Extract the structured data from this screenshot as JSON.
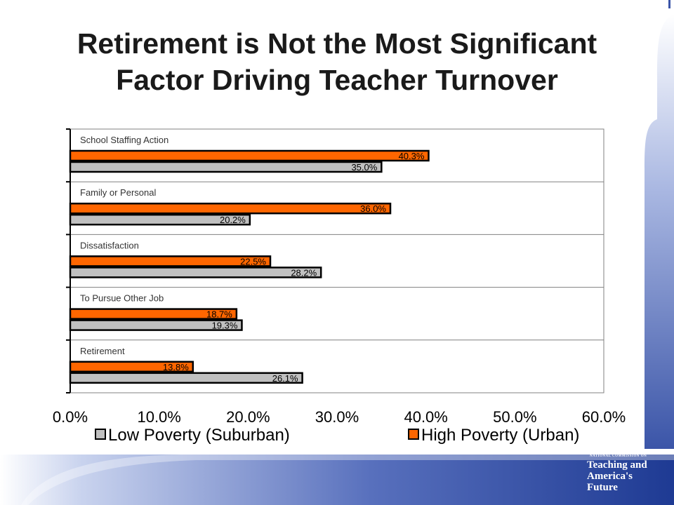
{
  "title_line1": "Retirement is Not the Most Significant",
  "title_line2": "Factor Driving Teacher Turnover",
  "logo": {
    "small_text": "NATIONAL COMMISSION ON",
    "line1": "Teaching and",
    "line2": "America's",
    "line3": "Future"
  },
  "colors": {
    "high": "#ff6600",
    "low": "#c0c0c0",
    "accent_blue": "#3b55a8"
  },
  "chart_data": {
    "type": "bar",
    "orientation": "horizontal",
    "categories": [
      "School Staffing Action",
      "Family or Personal",
      "Dissatisfaction",
      "To Pursue Other Job",
      "Retirement"
    ],
    "series": [
      {
        "name": "High Poverty (Urban)",
        "key": "high",
        "values": [
          40.3,
          36.0,
          22.5,
          18.7,
          13.8
        ],
        "labels": [
          "40.3%",
          "36.0%",
          "22.5%",
          "18.7%",
          "13.8%"
        ]
      },
      {
        "name": "Low Poverty (Suburban)",
        "key": "low",
        "values": [
          35.0,
          20.2,
          28.2,
          19.3,
          26.1
        ],
        "labels": [
          "35.0%",
          "20.2%",
          "28.2%",
          "19.3%",
          "26.1%"
        ]
      }
    ],
    "xlim": [
      0,
      60
    ],
    "xticks": [
      0,
      10,
      20,
      30,
      40,
      50,
      60
    ],
    "xtick_labels": [
      "0.0%",
      "10.0%",
      "20.0%",
      "30.0%",
      "40.0%",
      "50.0%",
      "60.0%"
    ],
    "legend": [
      {
        "name": "Low Poverty (Suburban)",
        "key": "low"
      },
      {
        "name": "High Poverty (Urban)",
        "key": "high"
      }
    ],
    "legend_position": "bottom",
    "grid": true
  }
}
